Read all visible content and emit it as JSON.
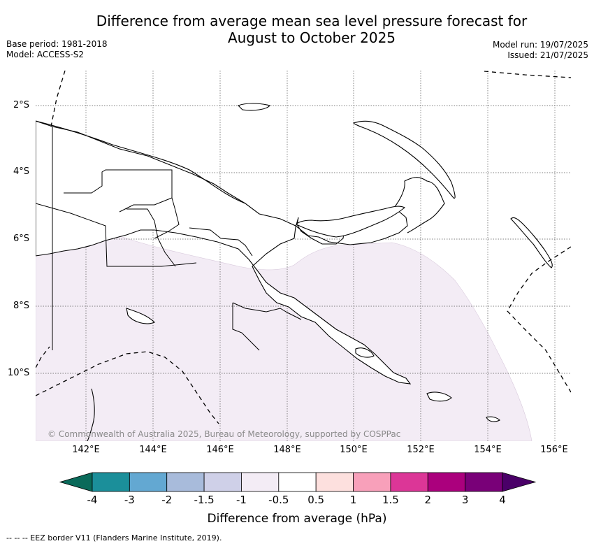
{
  "title": {
    "line1": "Difference from average mean sea level pressure forecast for",
    "line2": "August to October 2025"
  },
  "meta_left": {
    "base_period": "Base period: 1981-2018",
    "model": "Model: ACCESS-S2"
  },
  "meta_right": {
    "model_run": "Model run: 19/07/2025",
    "issued": "Issued: 21/07/2025"
  },
  "map": {
    "longitude_labels": [
      "142°E",
      "144°E",
      "146°E",
      "148°E",
      "150°E",
      "152°E",
      "154°E",
      "156°E"
    ],
    "latitude_labels": [
      "2°S",
      "4°S",
      "6°S",
      "8°S",
      "10°S"
    ],
    "copyright": "© Commonwealth of Australia 2025, Bureau of Meteorology, supported by COSPPac",
    "shaded_category": "-1 to -0.5",
    "shade_color": "#f3ecf5",
    "land_color": "#ffffff",
    "coast_color": "#000000"
  },
  "colorbar": {
    "title": "Difference from average (hPa)",
    "ticks": [
      "-4",
      "-3",
      "-2",
      "-1.5",
      "-1",
      "-0.5",
      "0.5",
      "1",
      "1.5",
      "2",
      "3",
      "4"
    ],
    "under_color": "#0a6a5a",
    "over_color": "#4a0068",
    "colors": [
      "#1b8f9a",
      "#63a8d2",
      "#a8bbdb",
      "#cfd0e8",
      "#f3ecf5",
      "#ffffff",
      "#fde0de",
      "#f8a0ba",
      "#dc3697",
      "#ab007d",
      "#790078"
    ]
  },
  "footnote": "--  --  -- EEZ border V11 (Flanders Marine Institute, 2019)."
}
